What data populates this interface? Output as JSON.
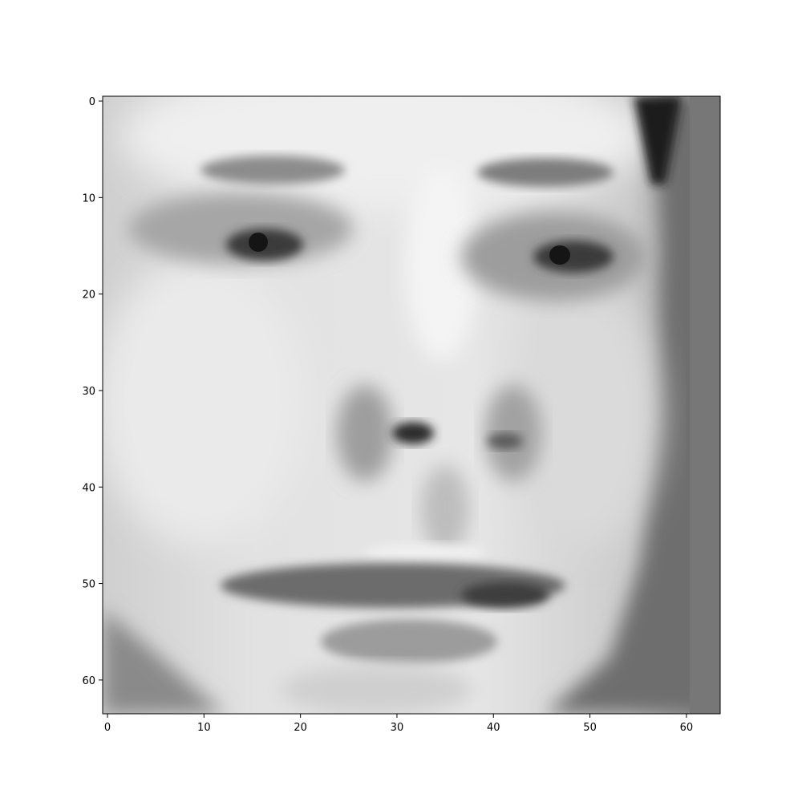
{
  "chart_data": {
    "type": "heatmap",
    "title": "",
    "xlabel": "",
    "ylabel": "",
    "colormap": "gray",
    "image_shape": [
      64,
      64
    ],
    "xlim": [
      -0.5,
      63.5
    ],
    "ylim": [
      63.5,
      -0.5
    ],
    "xticks": [
      0,
      10,
      20,
      30,
      40,
      50,
      60
    ],
    "yticks": [
      0,
      10,
      20,
      30,
      40,
      50,
      60
    ],
    "xtick_labels": [
      "0",
      "10",
      "20",
      "30",
      "40",
      "50",
      "60"
    ],
    "ytick_labels": [
      "0",
      "10",
      "20",
      "30",
      "40",
      "50",
      "60"
    ],
    "content": "grayscale face photograph (64x64 pixels)"
  },
  "colors": {
    "background": "#ffffff",
    "axis": "#000000"
  }
}
